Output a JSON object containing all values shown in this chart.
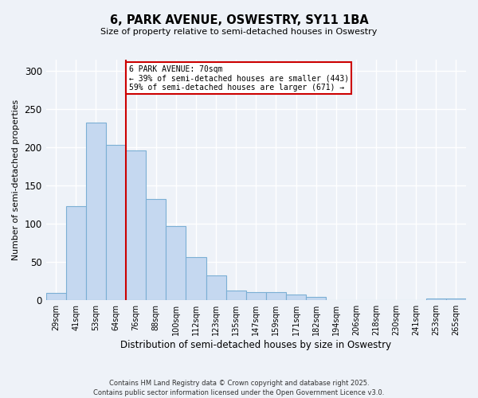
{
  "title_line1": "6, PARK AVENUE, OSWESTRY, SY11 1BA",
  "title_line2": "Size of property relative to semi-detached houses in Oswestry",
  "bar_labels": [
    "29sqm",
    "41sqm",
    "53sqm",
    "64sqm",
    "76sqm",
    "88sqm",
    "100sqm",
    "112sqm",
    "123sqm",
    "135sqm",
    "147sqm",
    "159sqm",
    "171sqm",
    "182sqm",
    "194sqm",
    "206sqm",
    "218sqm",
    "230sqm",
    "241sqm",
    "253sqm",
    "265sqm"
  ],
  "bar_values": [
    10,
    123,
    233,
    203,
    196,
    133,
    97,
    57,
    33,
    13,
    11,
    11,
    7,
    4,
    0,
    0,
    0,
    0,
    0,
    2,
    2
  ],
  "bar_color": "#c5d8f0",
  "bar_edgecolor": "#7bafd4",
  "bar_linewidth": 0.8,
  "vline_color": "#cc0000",
  "annotation_title": "6 PARK AVENUE: 70sqm",
  "annotation_line2": "← 39% of semi-detached houses are smaller (443)",
  "annotation_line3": "59% of semi-detached houses are larger (671) →",
  "annotation_box_edgecolor": "#cc0000",
  "annotation_box_facecolor": "#ffffff",
  "xlabel": "Distribution of semi-detached houses by size in Oswestry",
  "ylabel": "Number of semi-detached properties",
  "ylim": [
    0,
    315
  ],
  "yticks": [
    0,
    50,
    100,
    150,
    200,
    250,
    300
  ],
  "background_color": "#eef2f8",
  "grid_color": "#ffffff",
  "footnote_line1": "Contains HM Land Registry data © Crown copyright and database right 2025.",
  "footnote_line2": "Contains public sector information licensed under the Open Government Licence v3.0."
}
